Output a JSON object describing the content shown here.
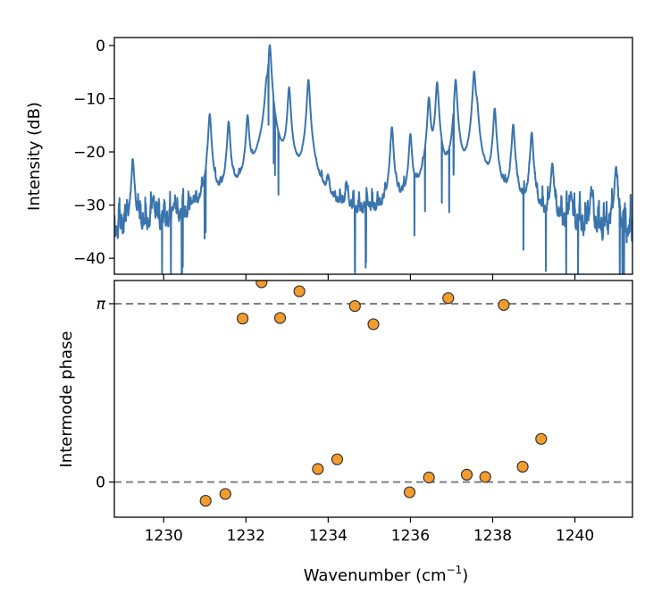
{
  "chart_data": [
    {
      "type": "line",
      "ylabel": "Intensity (dB)",
      "xlim": [
        1228.8,
        1241.4
      ],
      "ylim": [
        -43,
        1.5
      ],
      "yticks": [
        0,
        -10,
        -20,
        -30,
        -40
      ],
      "grid": false,
      "color": "#3a74ad",
      "peaks": [
        {
          "x": 1229.25,
          "y": -22
        },
        {
          "x": 1229.75,
          "y": -30
        },
        {
          "x": 1230.25,
          "y": -32
        },
        {
          "x": 1230.7,
          "y": -34
        },
        {
          "x": 1231.12,
          "y": -13
        },
        {
          "x": 1231.58,
          "y": -14.5
        },
        {
          "x": 1232.04,
          "y": -13.5
        },
        {
          "x": 1232.5,
          "y": -9
        },
        {
          "x": 1232.58,
          "y": 0
        },
        {
          "x": 1233.05,
          "y": -8
        },
        {
          "x": 1233.52,
          "y": -6.5
        },
        {
          "x": 1234.0,
          "y": -28
        },
        {
          "x": 1234.45,
          "y": -28.5
        },
        {
          "x": 1234.95,
          "y": -33
        },
        {
          "x": 1235.55,
          "y": -15.5
        },
        {
          "x": 1236.0,
          "y": -17
        },
        {
          "x": 1236.45,
          "y": -10
        },
        {
          "x": 1236.65,
          "y": -7
        },
        {
          "x": 1237.1,
          "y": -6.5
        },
        {
          "x": 1237.55,
          "y": -5
        },
        {
          "x": 1237.62,
          "y": -13
        },
        {
          "x": 1238.05,
          "y": -12
        },
        {
          "x": 1238.5,
          "y": -15
        },
        {
          "x": 1238.95,
          "y": -16.5
        },
        {
          "x": 1239.45,
          "y": -22.5
        },
        {
          "x": 1239.9,
          "y": -28.5
        },
        {
          "x": 1240.4,
          "y": -28
        },
        {
          "x": 1241.0,
          "y": -23
        }
      ]
    },
    {
      "type": "scatter",
      "xlabel": "Wavenumber (cm",
      "xlabel_sup": "−1",
      "xlabel_close": ")",
      "ylabel": "Intermode phase",
      "xlim": [
        1228.8,
        1241.4
      ],
      "ylim": [
        -0.62,
        3.55
      ],
      "xticks": [
        1230,
        1232,
        1234,
        1236,
        1238,
        1240
      ],
      "ytick_labels": [
        "0",
        "π"
      ],
      "reference_lines": [
        0,
        3.1416
      ],
      "color": "#f39c2e",
      "x": [
        1231.02,
        1231.5,
        1231.92,
        1232.38,
        1232.83,
        1233.3,
        1233.75,
        1234.22,
        1234.65,
        1235.1,
        1235.98,
        1236.45,
        1236.92,
        1237.37,
        1237.82,
        1238.27,
        1238.73,
        1239.18
      ],
      "y": [
        -0.33,
        -0.21,
        2.88,
        3.52,
        2.89,
        3.36,
        0.23,
        0.4,
        3.1,
        2.78,
        -0.18,
        0.08,
        3.24,
        0.13,
        0.09,
        3.12,
        0.27,
        0.76
      ]
    }
  ]
}
